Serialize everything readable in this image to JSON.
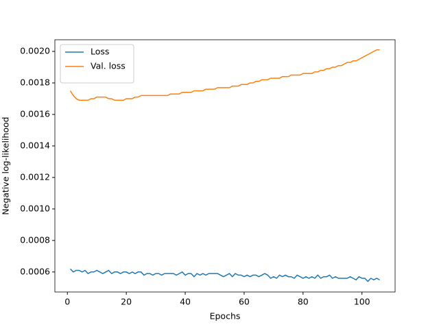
{
  "chart_data": {
    "type": "line",
    "xlabel": "Epochs",
    "ylabel": "Negative log-likelihood",
    "x": [
      1,
      2,
      3,
      4,
      5,
      6,
      7,
      8,
      9,
      10,
      11,
      12,
      13,
      14,
      15,
      16,
      17,
      18,
      19,
      20,
      21,
      22,
      23,
      24,
      25,
      26,
      27,
      28,
      29,
      30,
      31,
      32,
      33,
      34,
      35,
      36,
      37,
      38,
      39,
      40,
      41,
      42,
      43,
      44,
      45,
      46,
      47,
      48,
      49,
      50,
      51,
      52,
      53,
      54,
      55,
      56,
      57,
      58,
      59,
      60,
      61,
      62,
      63,
      64,
      65,
      66,
      67,
      68,
      69,
      70,
      71,
      72,
      73,
      74,
      75,
      76,
      77,
      78,
      79,
      80,
      81,
      82,
      83,
      84,
      85,
      86,
      87,
      88,
      89,
      90,
      91,
      92,
      93,
      94,
      95,
      96,
      97,
      98,
      99,
      100,
      101,
      102,
      103,
      104,
      105,
      106
    ],
    "series": [
      {
        "name": "Loss",
        "color": "#1f77b4",
        "values": [
          0.00062,
          0.0006,
          0.00061,
          0.00061,
          0.0006,
          0.00061,
          0.00059,
          0.0006,
          0.0006,
          0.00061,
          0.0006,
          0.00059,
          0.0006,
          0.00061,
          0.00059,
          0.0006,
          0.0006,
          0.00059,
          0.0006,
          0.0006,
          0.00059,
          0.0006,
          0.00059,
          0.0006,
          0.0006,
          0.00058,
          0.00059,
          0.00059,
          0.00058,
          0.00059,
          0.00059,
          0.00058,
          0.00059,
          0.00059,
          0.00059,
          0.00059,
          0.00058,
          0.00059,
          0.0006,
          0.00058,
          0.00059,
          0.00059,
          0.00057,
          0.00059,
          0.00058,
          0.00059,
          0.00058,
          0.00059,
          0.00059,
          0.00059,
          0.00059,
          0.00058,
          0.00057,
          0.00058,
          0.00059,
          0.00057,
          0.00059,
          0.00058,
          0.00058,
          0.00057,
          0.00058,
          0.00057,
          0.00058,
          0.00058,
          0.00057,
          0.00058,
          0.00059,
          0.00058,
          0.00056,
          0.00057,
          0.00056,
          0.00058,
          0.00057,
          0.00058,
          0.00057,
          0.00057,
          0.00056,
          0.00058,
          0.00057,
          0.00056,
          0.00057,
          0.00056,
          0.00057,
          0.00056,
          0.00058,
          0.00056,
          0.00057,
          0.00057,
          0.00058,
          0.00056,
          0.00057,
          0.00056,
          0.00056,
          0.00056,
          0.00056,
          0.00057,
          0.00056,
          0.00055,
          0.00057,
          0.00056,
          0.00056,
          0.00054,
          0.00056,
          0.00055,
          0.00056,
          0.00055
        ]
      },
      {
        "name": "Val. loss",
        "color": "#ff7f0e",
        "values": [
          0.00175,
          0.00172,
          0.0017,
          0.00169,
          0.00169,
          0.00169,
          0.00169,
          0.0017,
          0.0017,
          0.00171,
          0.00171,
          0.00171,
          0.00171,
          0.0017,
          0.0017,
          0.00169,
          0.00169,
          0.00169,
          0.00169,
          0.0017,
          0.0017,
          0.0017,
          0.00171,
          0.00171,
          0.00172,
          0.00172,
          0.00172,
          0.00172,
          0.00172,
          0.00172,
          0.00172,
          0.00172,
          0.00172,
          0.00172,
          0.00173,
          0.00173,
          0.00173,
          0.00173,
          0.00174,
          0.00174,
          0.00174,
          0.00174,
          0.00175,
          0.00175,
          0.00175,
          0.00175,
          0.00176,
          0.00176,
          0.00176,
          0.00176,
          0.00177,
          0.00177,
          0.00177,
          0.00177,
          0.00177,
          0.00178,
          0.00178,
          0.00178,
          0.00179,
          0.00179,
          0.00179,
          0.0018,
          0.0018,
          0.00181,
          0.00181,
          0.00182,
          0.00182,
          0.00182,
          0.00183,
          0.00183,
          0.00183,
          0.00183,
          0.00184,
          0.00184,
          0.00184,
          0.00185,
          0.00185,
          0.00185,
          0.00185,
          0.00186,
          0.00186,
          0.00186,
          0.00186,
          0.00187,
          0.00187,
          0.00188,
          0.00188,
          0.00189,
          0.00189,
          0.0019,
          0.0019,
          0.00191,
          0.00191,
          0.00192,
          0.00193,
          0.00193,
          0.00194,
          0.00194,
          0.00195,
          0.00196,
          0.00197,
          0.00198,
          0.00199,
          0.002,
          0.00201,
          0.00201
        ]
      }
    ],
    "xlim": [
      -4.25,
      111.25
    ],
    "xticks": [
      0,
      20,
      40,
      60,
      80,
      100
    ],
    "ylim": [
      0.000473,
      0.002074
    ],
    "yticks": [
      0.0006,
      0.0008,
      {
        "value": 0.001,
        "label": "0.0010"
      },
      0.0012,
      0.0014,
      0.0016,
      0.0018,
      {
        "value": 0.002,
        "label": "0.0020"
      }
    ],
    "legend": "upper left"
  }
}
